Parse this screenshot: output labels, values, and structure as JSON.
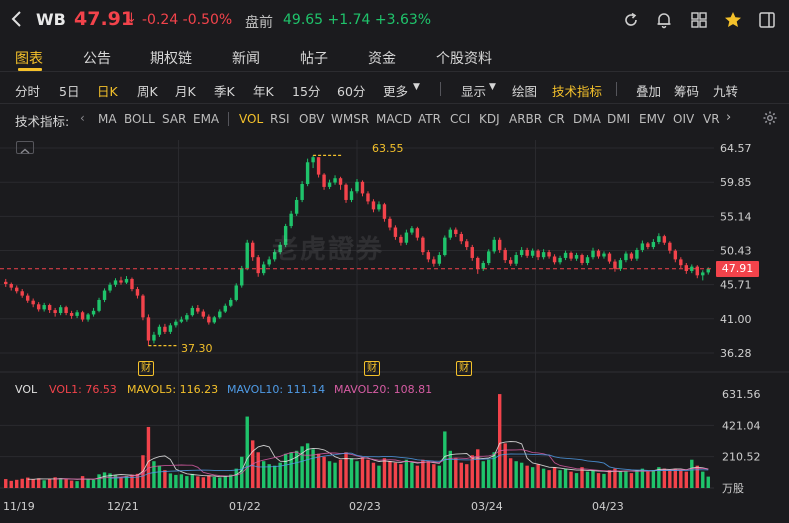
{
  "header": {
    "symbol": "WB",
    "price": "47.91",
    "price_arrow": "↓",
    "change": "-0.24 -0.50%",
    "premarket_label": "盘前",
    "premarket": "49.65 +1.74 +3.63%",
    "icons": [
      "back-icon",
      "refresh-icon",
      "bell-icon",
      "grid-icon",
      "star-icon",
      "sidebar-icon"
    ]
  },
  "nav": {
    "tabs": [
      "图表",
      "公告",
      "期权链",
      "新闻",
      "帖子",
      "资金",
      "个股资料"
    ],
    "active": 0
  },
  "periods": {
    "items": [
      "分时",
      "5日",
      "日K",
      "周K",
      "月K",
      "季K",
      "年K",
      "15分",
      "60分",
      "更多"
    ],
    "active": 2,
    "tools": [
      "显示",
      "绘图",
      "技术指标",
      "叠加",
      "筹码",
      "九转"
    ]
  },
  "indicators": {
    "label": "技术指标:",
    "items": [
      "MA",
      "BOLL",
      "SAR",
      "EMA",
      "VOL",
      "RSI",
      "OBV",
      "WMSR",
      "MACD",
      "ATR",
      "CCI",
      "KDJ",
      "ARBR",
      "CR",
      "DMA",
      "DMI",
      "EMV",
      "OIV",
      "VR"
    ],
    "active": "VOL"
  },
  "chart": {
    "watermark": "老虎證券",
    "last_price": "47.91",
    "high_annotation": "63.55",
    "low_annotation": "37.30",
    "earnings_badge": "财",
    "price_ticks": [
      "64.57",
      "59.85",
      "55.14",
      "50.43",
      "45.71",
      "41.00",
      "36.28"
    ],
    "volume_ticks": [
      "631.56",
      "421.04",
      "210.52",
      "万股"
    ],
    "x_labels": [
      "11/19",
      "12/21",
      "01/22",
      "02/23",
      "03/24",
      "04/23"
    ],
    "volume_legend": {
      "vol": "VOL",
      "vol1": "VOL1: 76.53",
      "mavol5": "MAVOL5: 116.23",
      "mavol10": "MAVOL10: 111.14",
      "mavol20": "MAVOL20: 108.81"
    },
    "colors": {
      "up": "#1fc36b",
      "down": "#f2434b",
      "accent": "#f4c12b",
      "ma5": "#e6e6e6",
      "ma10": "#f4c12b",
      "ma20": "#4f9be6",
      "ma30": "#d65ca3"
    }
  },
  "chart_data": {
    "type": "candlestick",
    "y_range": [
      36.28,
      64.57
    ],
    "last_close": 47.91,
    "high": 63.55,
    "low": 37.3,
    "volume_unit": "万股",
    "candles": [
      [
        46.1,
        45.8,
        46.5,
        45.4,
        60
      ],
      [
        45.8,
        45.3,
        46.0,
        44.9,
        48
      ],
      [
        45.3,
        44.8,
        45.6,
        44.5,
        55
      ],
      [
        44.8,
        44.2,
        45.1,
        43.9,
        62
      ],
      [
        44.2,
        43.5,
        44.5,
        43.2,
        70
      ],
      [
        43.5,
        43.0,
        43.8,
        42.6,
        58
      ],
      [
        43.0,
        42.3,
        43.3,
        42.0,
        65
      ],
      [
        42.3,
        42.9,
        43.2,
        42.0,
        52
      ],
      [
        42.9,
        42.2,
        43.1,
        41.8,
        60
      ],
      [
        42.2,
        41.8,
        42.5,
        41.3,
        72
      ],
      [
        41.8,
        42.6,
        42.9,
        41.5,
        66
      ],
      [
        42.6,
        41.8,
        42.8,
        41.5,
        58
      ],
      [
        41.8,
        41.4,
        42.1,
        41.0,
        50
      ],
      [
        41.4,
        41.9,
        42.2,
        41.1,
        46
      ],
      [
        41.9,
        40.9,
        42.1,
        40.6,
        80
      ],
      [
        40.9,
        41.6,
        41.8,
        40.6,
        62
      ],
      [
        41.6,
        42.1,
        42.5,
        41.3,
        55
      ],
      [
        42.1,
        43.6,
        43.9,
        41.9,
        92
      ],
      [
        43.6,
        44.9,
        45.2,
        43.3,
        105
      ],
      [
        44.9,
        45.7,
        46.0,
        44.6,
        98
      ],
      [
        45.7,
        46.3,
        46.6,
        45.4,
        86
      ],
      [
        46.3,
        46.0,
        46.8,
        45.7,
        74
      ],
      [
        46.0,
        46.5,
        46.9,
        45.8,
        82
      ],
      [
        46.5,
        45.1,
        46.7,
        44.8,
        90
      ],
      [
        45.1,
        44.2,
        45.4,
        43.8,
        95
      ],
      [
        44.2,
        41.2,
        44.4,
        40.8,
        220
      ],
      [
        41.2,
        38.0,
        41.6,
        37.3,
        410
      ],
      [
        38.0,
        38.8,
        39.2,
        37.6,
        180
      ],
      [
        38.8,
        39.9,
        40.2,
        38.5,
        150
      ],
      [
        39.9,
        39.2,
        40.3,
        38.9,
        120
      ],
      [
        39.2,
        40.1,
        40.4,
        38.9,
        98
      ],
      [
        40.1,
        40.6,
        40.9,
        39.8,
        88
      ],
      [
        40.6,
        40.9,
        41.3,
        40.4,
        92
      ],
      [
        40.9,
        41.5,
        41.8,
        40.6,
        80
      ],
      [
        41.5,
        42.5,
        42.8,
        41.3,
        95
      ],
      [
        42.5,
        42.0,
        42.9,
        41.7,
        78
      ],
      [
        42.0,
        41.3,
        42.3,
        41.0,
        72
      ],
      [
        41.3,
        40.5,
        41.6,
        40.2,
        85
      ],
      [
        40.5,
        41.2,
        41.4,
        40.3,
        74
      ],
      [
        41.2,
        42.0,
        42.3,
        41.0,
        70
      ],
      [
        42.0,
        42.8,
        43.1,
        41.8,
        82
      ],
      [
        42.8,
        43.6,
        43.9,
        42.6,
        90
      ],
      [
        43.6,
        45.6,
        45.9,
        43.4,
        130
      ],
      [
        45.6,
        48.0,
        48.3,
        45.3,
        210
      ],
      [
        48.0,
        51.5,
        51.9,
        47.7,
        480
      ],
      [
        51.5,
        49.5,
        51.8,
        49.0,
        320
      ],
      [
        49.5,
        47.3,
        49.8,
        46.8,
        240
      ],
      [
        47.3,
        48.5,
        48.9,
        47.0,
        180
      ],
      [
        48.5,
        49.2,
        49.6,
        48.2,
        160
      ],
      [
        49.2,
        50.2,
        50.6,
        48.9,
        150
      ],
      [
        50.2,
        51.2,
        51.6,
        49.9,
        170
      ],
      [
        51.2,
        53.8,
        54.1,
        50.9,
        230
      ],
      [
        53.8,
        55.5,
        55.9,
        53.5,
        240
      ],
      [
        55.5,
        57.4,
        57.8,
        55.2,
        250
      ],
      [
        57.4,
        59.6,
        60.0,
        57.1,
        280
      ],
      [
        59.6,
        62.6,
        63.1,
        59.3,
        300
      ],
      [
        62.6,
        63.3,
        63.55,
        61.8,
        260
      ],
      [
        63.3,
        60.9,
        63.3,
        60.5,
        230
      ],
      [
        60.9,
        59.2,
        61.1,
        58.8,
        210
      ],
      [
        59.2,
        59.8,
        60.2,
        58.9,
        180
      ],
      [
        59.8,
        60.4,
        60.8,
        59.5,
        170
      ],
      [
        60.4,
        59.5,
        60.6,
        58.8,
        190
      ],
      [
        59.5,
        57.4,
        59.7,
        57.0,
        240
      ],
      [
        57.4,
        58.6,
        59.0,
        57.1,
        200
      ],
      [
        58.6,
        59.9,
        60.3,
        58.3,
        180
      ],
      [
        59.9,
        58.3,
        60.1,
        57.9,
        200
      ],
      [
        58.3,
        57.2,
        58.6,
        56.8,
        190
      ],
      [
        57.2,
        56.1,
        57.5,
        55.7,
        170
      ],
      [
        56.1,
        56.8,
        57.2,
        55.8,
        150
      ],
      [
        56.8,
        54.8,
        57.0,
        54.4,
        200
      ],
      [
        54.8,
        53.6,
        55.1,
        53.2,
        180
      ],
      [
        53.6,
        52.3,
        53.9,
        51.9,
        170
      ],
      [
        52.3,
        51.5,
        52.6,
        51.1,
        160
      ],
      [
        51.5,
        52.9,
        53.3,
        51.2,
        190
      ],
      [
        52.9,
        53.5,
        53.8,
        52.6,
        170
      ],
      [
        53.5,
        52.2,
        53.7,
        51.8,
        150
      ],
      [
        52.2,
        50.2,
        52.4,
        49.8,
        190
      ],
      [
        50.2,
        49.2,
        50.5,
        48.8,
        180
      ],
      [
        49.2,
        48.6,
        49.6,
        48.2,
        160
      ],
      [
        48.6,
        49.8,
        50.2,
        48.3,
        150
      ],
      [
        49.8,
        52.2,
        52.5,
        49.6,
        380
      ],
      [
        52.2,
        53.3,
        53.6,
        51.9,
        250
      ],
      [
        53.3,
        52.7,
        53.6,
        52.3,
        200
      ],
      [
        52.7,
        51.7,
        53.0,
        51.3,
        170
      ],
      [
        51.7,
        50.9,
        52.0,
        50.5,
        160
      ],
      [
        50.9,
        49.4,
        51.2,
        49.0,
        220
      ],
      [
        49.4,
        47.9,
        49.6,
        47.2,
        260
      ],
      [
        47.9,
        48.7,
        49.0,
        47.6,
        180
      ],
      [
        48.7,
        50.3,
        50.6,
        48.4,
        190
      ],
      [
        50.3,
        51.9,
        52.3,
        50.0,
        240
      ],
      [
        51.9,
        50.5,
        52.2,
        50.1,
        631
      ],
      [
        50.5,
        49.1,
        50.8,
        48.7,
        300
      ],
      [
        49.1,
        48.6,
        49.5,
        48.3,
        200
      ],
      [
        48.6,
        49.8,
        50.2,
        48.3,
        180
      ],
      [
        49.8,
        50.5,
        50.9,
        49.5,
        170
      ],
      [
        50.5,
        49.7,
        50.8,
        49.4,
        150
      ],
      [
        49.7,
        50.4,
        50.7,
        49.4,
        140
      ],
      [
        50.4,
        49.5,
        50.6,
        49.1,
        160
      ],
      [
        49.5,
        50.2,
        50.6,
        49.2,
        130
      ],
      [
        50.2,
        49.6,
        50.5,
        49.3,
        120
      ],
      [
        49.6,
        48.8,
        49.9,
        48.5,
        140
      ],
      [
        48.8,
        49.4,
        49.7,
        48.5,
        120
      ],
      [
        49.4,
        50.1,
        50.4,
        49.1,
        130
      ],
      [
        50.1,
        49.3,
        50.3,
        49.0,
        110
      ],
      [
        49.3,
        49.8,
        50.1,
        49.0,
        100
      ],
      [
        49.8,
        48.7,
        50.0,
        48.4,
        140
      ],
      [
        48.7,
        49.5,
        49.8,
        48.4,
        110
      ],
      [
        49.5,
        50.4,
        50.8,
        49.2,
        120
      ],
      [
        50.4,
        49.6,
        50.6,
        49.3,
        100
      ],
      [
        49.6,
        50.0,
        50.3,
        49.3,
        95
      ],
      [
        50.0,
        48.9,
        50.2,
        48.6,
        120
      ],
      [
        48.9,
        47.9,
        49.2,
        47.5,
        130
      ],
      [
        47.9,
        49.1,
        49.4,
        47.6,
        110
      ],
      [
        49.1,
        50.0,
        50.3,
        48.8,
        115
      ],
      [
        50.0,
        49.3,
        50.2,
        49.0,
        100
      ],
      [
        49.3,
        50.5,
        50.8,
        49.0,
        120
      ],
      [
        50.5,
        51.4,
        51.8,
        50.2,
        130
      ],
      [
        51.4,
        50.9,
        51.6,
        50.6,
        110
      ],
      [
        50.9,
        51.6,
        52.0,
        50.6,
        120
      ],
      [
        51.6,
        52.4,
        52.8,
        51.3,
        140
      ],
      [
        52.4,
        51.5,
        52.6,
        51.2,
        130
      ],
      [
        51.5,
        50.4,
        51.7,
        50.0,
        120
      ],
      [
        50.4,
        49.2,
        50.6,
        48.8,
        130
      ],
      [
        49.2,
        48.4,
        49.5,
        48.0,
        120
      ],
      [
        48.4,
        47.6,
        48.7,
        47.2,
        110
      ],
      [
        47.6,
        48.2,
        48.5,
        47.3,
        190
      ],
      [
        48.2,
        47.0,
        48.4,
        46.6,
        150
      ],
      [
        47.0,
        47.4,
        47.7,
        46.3,
        110
      ],
      [
        47.4,
        47.91,
        48.1,
        47.1,
        76.53
      ]
    ]
  }
}
